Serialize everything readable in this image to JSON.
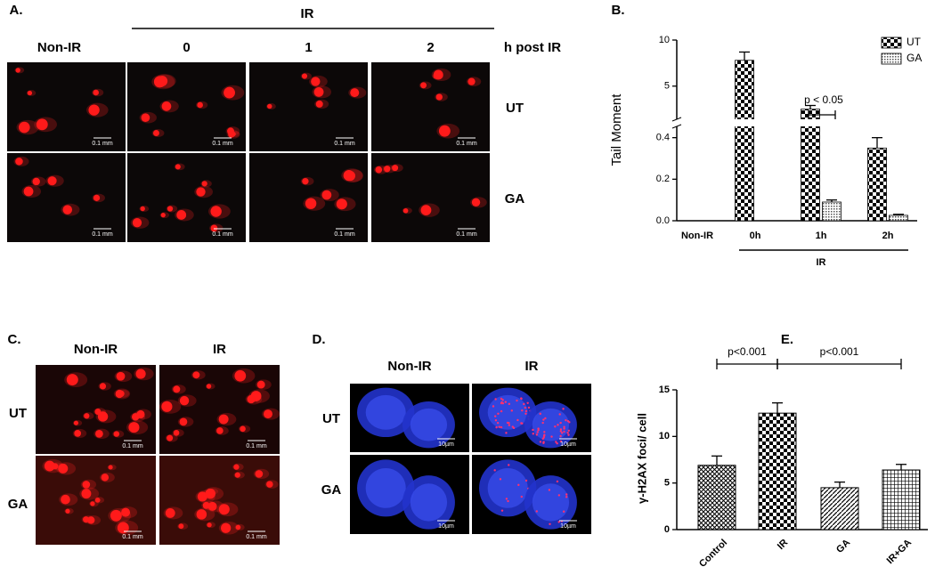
{
  "panels": {
    "A": {
      "label": "A.",
      "group_label": "IR",
      "columns": [
        "Non-IR",
        "0",
        "1",
        "2"
      ],
      "unit": "h post IR",
      "rows": [
        "UT",
        "GA"
      ],
      "scale_bar": "0.1 mm"
    },
    "C": {
      "label": "C.",
      "columns": [
        "Non-IR",
        "IR"
      ],
      "rows": [
        "UT",
        "GA"
      ],
      "scale_bar": "0.1 mm"
    },
    "D": {
      "label": "D.",
      "columns": [
        "Non-IR",
        "IR"
      ],
      "rows": [
        "UT",
        "GA"
      ],
      "scale_bar": "10µm"
    }
  },
  "chart_data": [
    {
      "type": "bar",
      "panel_label": "B.",
      "ylabel": "Tail Moment",
      "categories": [
        "Non-IR",
        "0h",
        "1h",
        "2h"
      ],
      "group_label": "IR",
      "series": [
        {
          "name": "UT",
          "values": [
            null,
            7.8,
            2.5,
            0.35
          ],
          "errors": [
            null,
            0.9,
            0.4,
            0.05
          ]
        },
        {
          "name": "GA",
          "values": [
            null,
            null,
            0.09,
            0.026
          ],
          "errors": [
            null,
            null,
            0.01,
            0.005
          ]
        }
      ],
      "ylim": [
        0,
        10
      ],
      "y_break": [
        0.45,
        1.5
      ],
      "yticks": [
        {
          "value": 0,
          "label": "0.0"
        },
        0.2,
        0.4,
        5,
        10
      ],
      "legend": "upper right",
      "annotations": [
        "p < 0.05"
      ]
    },
    {
      "type": "bar",
      "panel_label": "E.",
      "ylabel": "γ-H2AX foci/ cell",
      "categories": [
        "Control",
        "IR",
        "GA",
        "IR+GA"
      ],
      "values": [
        6.9,
        12.5,
        4.5,
        6.4
      ],
      "errors": [
        1.0,
        1.1,
        0.6,
        0.6
      ],
      "ylim": [
        0,
        15
      ],
      "yticks": [
        0,
        5,
        10,
        15
      ],
      "annotations": [
        "p<0.001",
        "p<0.001"
      ]
    }
  ]
}
